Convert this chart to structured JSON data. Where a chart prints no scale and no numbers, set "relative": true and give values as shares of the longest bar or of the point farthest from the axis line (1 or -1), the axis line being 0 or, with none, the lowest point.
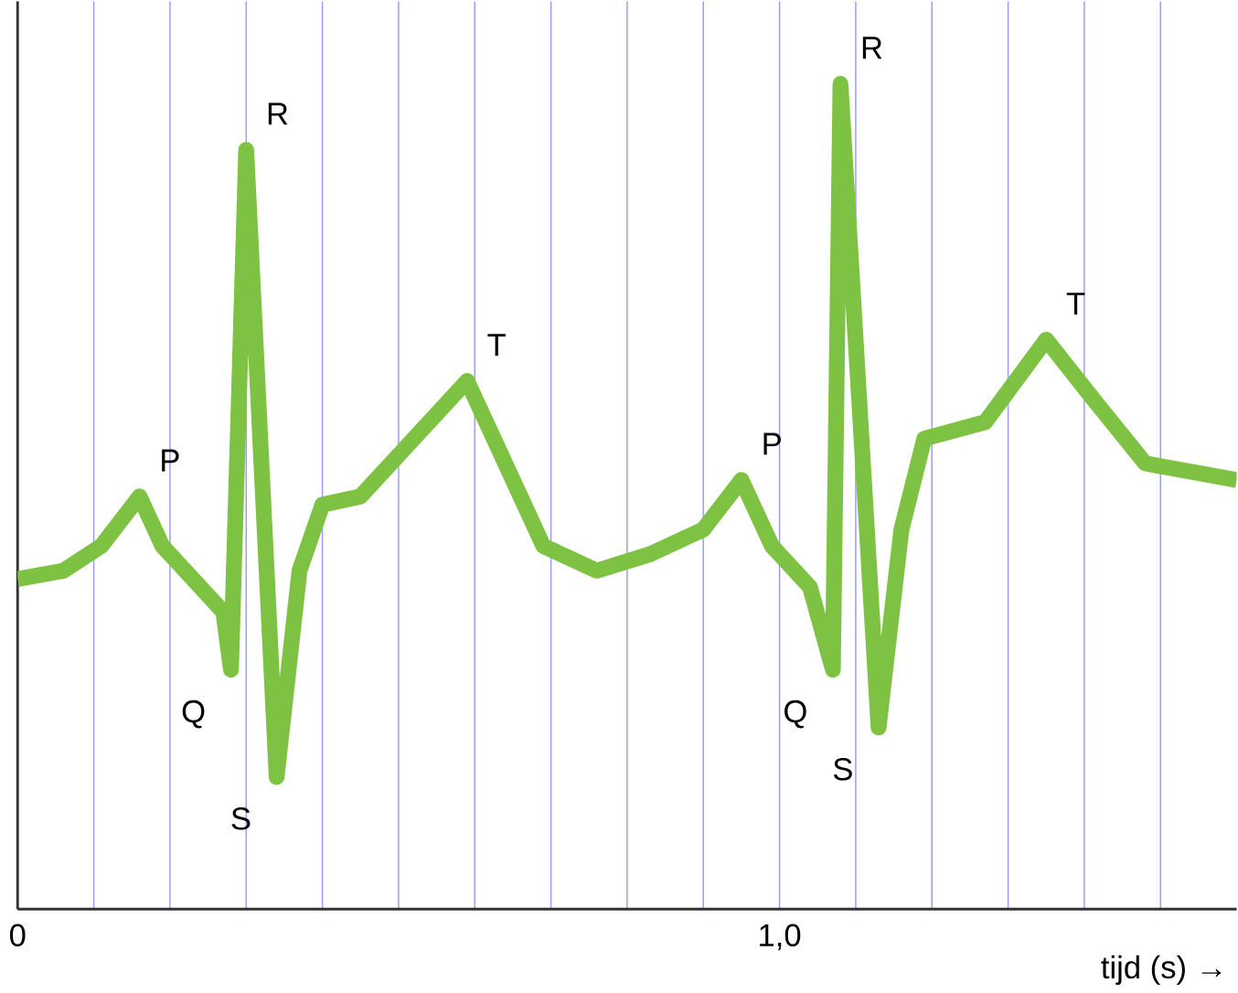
{
  "chart_data": {
    "type": "line",
    "relative": true,
    "xlabel": "tijd (s) →",
    "xlim": [
      0,
      1.6
    ],
    "xticks": [
      0,
      {
        "value": 0.1,
        "label": null
      },
      {
        "value": 0.2,
        "label": null
      },
      {
        "value": 0.3,
        "label": null
      },
      {
        "value": 0.4,
        "label": null
      },
      {
        "value": 0.5,
        "label": null
      },
      {
        "value": 0.6,
        "label": null
      },
      {
        "value": 0.7,
        "label": null
      },
      {
        "value": 0.8,
        "label": null
      },
      {
        "value": 0.9,
        "label": null
      },
      {
        "value": 1.0,
        "label": "1,0"
      },
      {
        "value": 1.1,
        "label": null
      },
      {
        "value": 1.2,
        "label": null
      },
      {
        "value": 1.3,
        "label": null
      },
      {
        "value": 1.4,
        "label": null
      },
      {
        "value": 1.5,
        "label": null
      }
    ],
    "grid": "x",
    "marker": "none",
    "line_style": "solid",
    "series": [
      {
        "color": "#7dc242",
        "x": [
          0.0,
          0.06,
          0.11,
          0.16,
          0.19,
          0.23,
          0.27,
          0.28,
          0.3,
          0.34,
          0.37,
          0.4,
          0.45,
          0.52,
          0.59,
          0.64,
          0.69,
          0.76,
          0.83,
          0.9,
          0.95,
          0.99,
          1.04,
          1.07,
          1.08,
          1.13,
          1.16,
          1.19,
          1.27,
          1.35,
          1.41,
          1.48,
          1.6
        ],
        "values": [
          0.4,
          0.41,
          0.44,
          0.5,
          0.44,
          0.4,
          0.36,
          0.29,
          0.92,
          0.16,
          0.41,
          0.49,
          0.5,
          0.57,
          0.64,
          0.54,
          0.44,
          0.41,
          0.43,
          0.46,
          0.52,
          0.44,
          0.39,
          0.29,
          1.0,
          0.22,
          0.46,
          0.57,
          0.59,
          0.69,
          0.62,
          0.54,
          0.52
        ]
      }
    ],
    "annotations": [
      {
        "text": "P",
        "x": 0.16,
        "y": 0.5
      },
      {
        "text": "Q",
        "x": 0.28,
        "y": 0.29
      },
      {
        "text": "R",
        "x": 0.3,
        "y": 0.92
      },
      {
        "text": "S",
        "x": 0.34,
        "y": 0.16
      },
      {
        "text": "T",
        "x": 0.59,
        "y": 0.64
      },
      {
        "text": "P",
        "x": 0.95,
        "y": 0.52
      },
      {
        "text": "Q",
        "x": 1.07,
        "y": 0.29
      },
      {
        "text": "R",
        "x": 1.08,
        "y": 1.0
      },
      {
        "text": "S",
        "x": 1.13,
        "y": 0.22
      },
      {
        "text": "T",
        "x": 1.35,
        "y": 0.69
      }
    ]
  }
}
